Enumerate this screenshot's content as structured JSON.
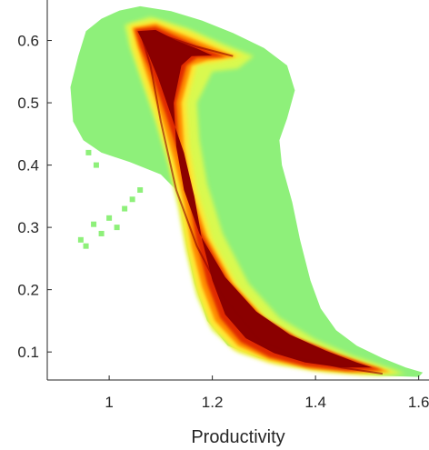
{
  "chart_data": {
    "type": "heatmap",
    "title": "",
    "xlabel": "Productivity",
    "ylabel": "",
    "xlim": [
      0.88,
      1.62
    ],
    "ylim": [
      0.055,
      0.665
    ],
    "x_ticks": [
      1,
      1.2,
      1.4,
      1.6
    ],
    "x_tick_labels": [
      "1",
      "1.2",
      "1.4",
      "1.6"
    ],
    "y_ticks": [
      0.1,
      0.2,
      0.3,
      0.4,
      0.5,
      0.6
    ],
    "y_tick_labels": [
      "0.1",
      "0.2",
      "0.3",
      "0.4",
      "0.5",
      "0.6"
    ],
    "grid": false,
    "box": "left-bottom",
    "colormap": [
      "#8b0000",
      "#e02a00",
      "#ff8c00",
      "#ffe633",
      "#d9f94f",
      "#8ef07a"
    ],
    "density_ridge": [
      {
        "x": 1.06,
        "y": 0.615
      },
      {
        "x": 1.08,
        "y": 0.56
      },
      {
        "x": 1.1,
        "y": 0.47
      },
      {
        "x": 1.13,
        "y": 0.36
      },
      {
        "x": 1.17,
        "y": 0.27
      },
      {
        "x": 1.22,
        "y": 0.19
      },
      {
        "x": 1.29,
        "y": 0.12
      },
      {
        "x": 1.37,
        "y": 0.09
      },
      {
        "x": 1.45,
        "y": 0.075
      },
      {
        "x": 1.53,
        "y": 0.065
      }
    ],
    "secondary_ridge": [
      {
        "x": 1.08,
        "y": 0.615
      },
      {
        "x": 1.17,
        "y": 0.59
      },
      {
        "x": 1.24,
        "y": 0.575
      }
    ]
  }
}
